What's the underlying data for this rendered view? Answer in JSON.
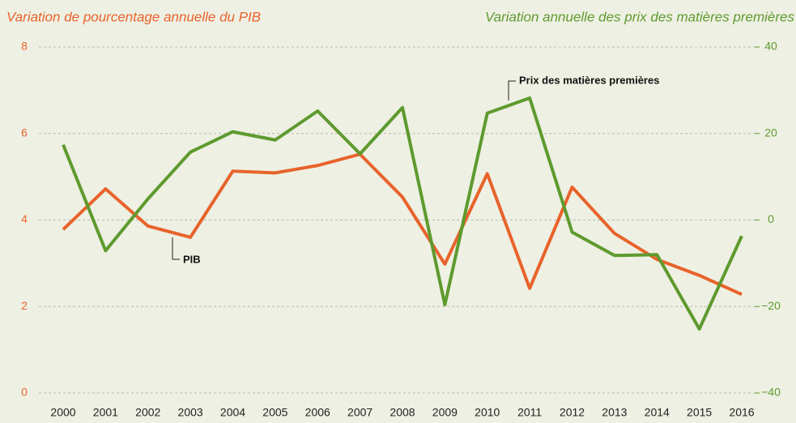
{
  "chart_data": {
    "type": "line",
    "title_left": "Variation de pourcentage annuelle du PIB",
    "title_right": "Variation annuelle des prix des matières premières",
    "categories": [
      "2000",
      "2001",
      "2002",
      "2003",
      "2004",
      "2005",
      "2006",
      "2007",
      "2008",
      "2009",
      "2010",
      "2011",
      "2012",
      "2013",
      "2014",
      "2015",
      "2016"
    ],
    "series": [
      {
        "name": "PIB",
        "color": "#e8632b",
        "axis": "y",
        "values": [
          3.78,
          4.72,
          3.86,
          3.6,
          5.13,
          5.09,
          5.26,
          5.52,
          4.53,
          2.98,
          5.07,
          2.42,
          4.76,
          3.69,
          3.09,
          2.72,
          2.28
        ]
      },
      {
        "name": "Prix des matières premières",
        "color": "#5e9a2e",
        "axis": "y2",
        "values": [
          17.4,
          -7.1,
          4.9,
          15.7,
          20.4,
          18.5,
          25.2,
          15.3,
          26,
          -19.6,
          24.7,
          28.2,
          -2.8,
          -8.2,
          -8,
          -25.2,
          -3.7
        ]
      }
    ],
    "ylim": [
      0,
      8
    ],
    "yticks": [
      0,
      2,
      4,
      6,
      8
    ],
    "y2lim": [
      -40,
      40
    ],
    "y2ticks": [
      {
        "value": -40,
        "label": "−40"
      },
      {
        "value": -20,
        "label": "−20"
      },
      0,
      20,
      40
    ],
    "grid": true
  }
}
